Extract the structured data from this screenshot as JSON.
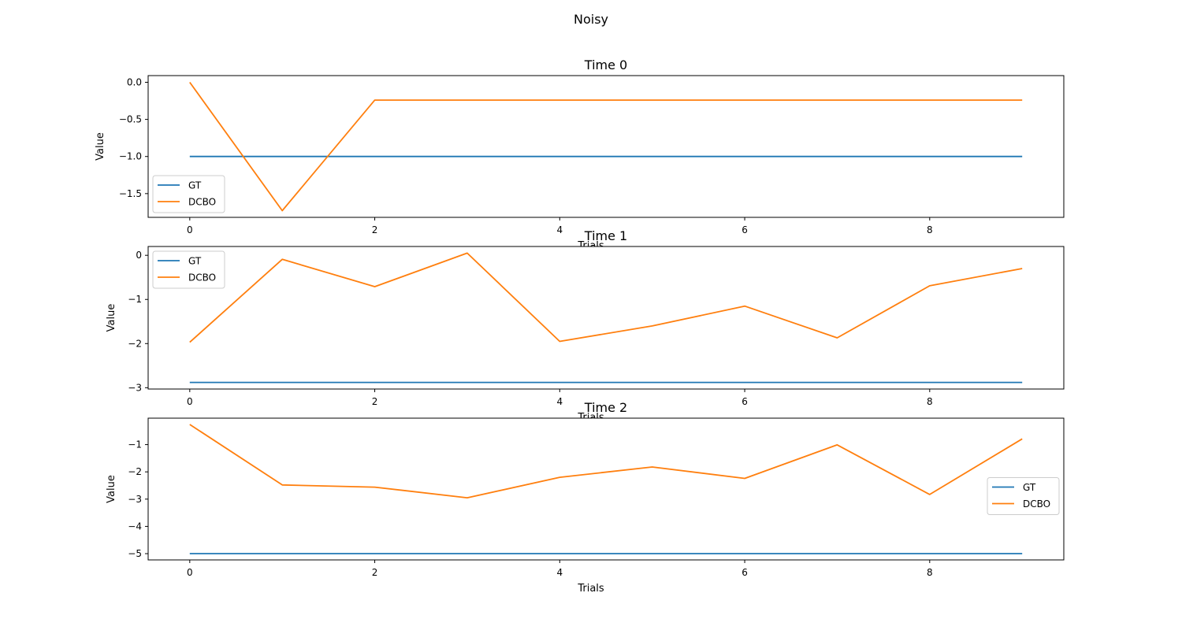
{
  "figure": {
    "suptitle": "Noisy"
  },
  "colors": {
    "GT": "#1f77b4",
    "DCBO": "#ff7f0e",
    "axis": "#000000",
    "legend_border": "#cccccc"
  },
  "chart_data": [
    {
      "type": "line",
      "title": "Time 0",
      "xlabel": "Trials",
      "ylabel": "Value",
      "xlim": [
        -0.45,
        9.45
      ],
      "ylim": [
        -1.82,
        0.09
      ],
      "xticks": [
        0,
        2,
        4,
        6,
        8
      ],
      "yticks": [
        0.0,
        -0.5,
        -1.0,
        -1.5
      ],
      "ytick_labels": [
        "0.0",
        "−0.5",
        "−1.0",
        "−1.5"
      ],
      "legend_position": "lower-left",
      "grid": false,
      "x": [
        0,
        1,
        2,
        3,
        4,
        5,
        6,
        7,
        8,
        9
      ],
      "series": [
        {
          "name": "GT",
          "color": "#1f77b4",
          "values": [
            -1.0,
            -1.0,
            -1.0,
            -1.0,
            -1.0,
            -1.0,
            -1.0,
            -1.0,
            -1.0,
            -1.0
          ]
        },
        {
          "name": "DCBO",
          "color": "#ff7f0e",
          "values": [
            0.0,
            -1.73,
            -0.24,
            -0.24,
            -0.24,
            -0.24,
            -0.24,
            -0.24,
            -0.24,
            -0.24
          ]
        }
      ]
    },
    {
      "type": "line",
      "title": "Time 1",
      "xlabel": "Trials",
      "ylabel": "Value",
      "xlim": [
        -0.45,
        9.45
      ],
      "ylim": [
        -3.03,
        0.2
      ],
      "xticks": [
        0,
        2,
        4,
        6,
        8
      ],
      "yticks": [
        0,
        -1,
        -2,
        -3
      ],
      "ytick_labels": [
        "0",
        "−1",
        "−2",
        "−3"
      ],
      "legend_position": "upper-left",
      "grid": false,
      "x": [
        0,
        1,
        2,
        3,
        4,
        5,
        6,
        7,
        8,
        9
      ],
      "series": [
        {
          "name": "GT",
          "color": "#1f77b4",
          "values": [
            -2.88,
            -2.88,
            -2.88,
            -2.88,
            -2.88,
            -2.88,
            -2.88,
            -2.88,
            -2.88,
            -2.88
          ]
        },
        {
          "name": "DCBO",
          "color": "#ff7f0e",
          "values": [
            -1.97,
            -0.09,
            -0.71,
            0.05,
            -1.95,
            -1.6,
            -1.15,
            -1.87,
            -0.69,
            -0.3
          ]
        }
      ]
    },
    {
      "type": "line",
      "title": "Time 2",
      "xlabel": "Trials",
      "ylabel": "Value",
      "xlim": [
        -0.45,
        9.45
      ],
      "ylim": [
        -5.23,
        -0.03
      ],
      "xticks": [
        0,
        2,
        4,
        6,
        8
      ],
      "yticks": [
        -1,
        -2,
        -3,
        -4,
        -5
      ],
      "ytick_labels": [
        "−1",
        "−2",
        "−3",
        "−4",
        "−5"
      ],
      "legend_position": "center-right",
      "grid": false,
      "x": [
        0,
        1,
        2,
        3,
        4,
        5,
        6,
        7,
        8,
        9
      ],
      "series": [
        {
          "name": "GT",
          "color": "#1f77b4",
          "values": [
            -5.0,
            -5.0,
            -5.0,
            -5.0,
            -5.0,
            -5.0,
            -5.0,
            -5.0,
            -5.0,
            -5.0
          ]
        },
        {
          "name": "DCBO",
          "color": "#ff7f0e",
          "values": [
            -0.26,
            -2.48,
            -2.56,
            -2.95,
            -2.2,
            -1.82,
            -2.24,
            -1.01,
            -2.83,
            -0.79
          ]
        }
      ]
    }
  ]
}
